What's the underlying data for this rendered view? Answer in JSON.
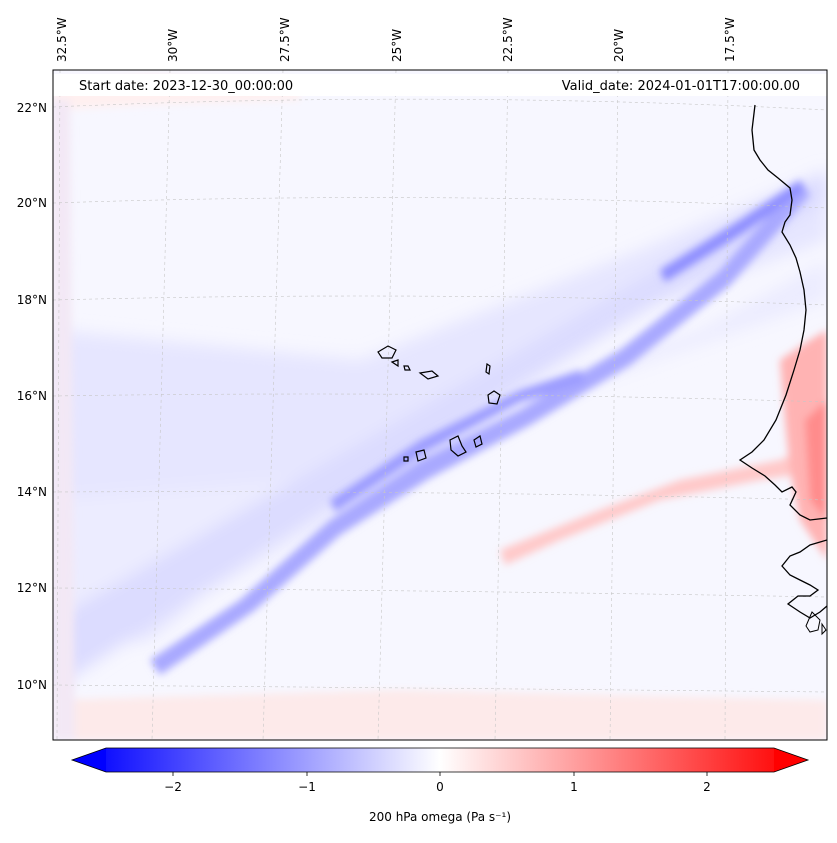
{
  "map": {
    "start_date_label": "Start date: 2023-12-30_00:00:00",
    "valid_date_label": "Valid_date: 2024-01-01T17:00:00.00",
    "lon_labels": [
      "32.5°W",
      "30°W",
      "27.5°W",
      "25°W",
      "22.5°W",
      "20°W",
      "17.5°W"
    ],
    "lat_labels": [
      "22°N",
      "20°N",
      "18°N",
      "16°N",
      "14°N",
      "12°N",
      "10°N"
    ],
    "colors": {
      "negative": "#0000ff",
      "positive": "#ff0000",
      "neutral": "#ffffff",
      "coast": "#000000",
      "grid": "#b0b0b0"
    }
  },
  "colorbar": {
    "label": "200 hPa omega (Pa s⁻¹)",
    "min": -2.5,
    "max": 2.5,
    "ticks": [
      "−2",
      "−1",
      "0",
      "1",
      "2"
    ],
    "extend": "both",
    "cmap": "bwr"
  }
}
